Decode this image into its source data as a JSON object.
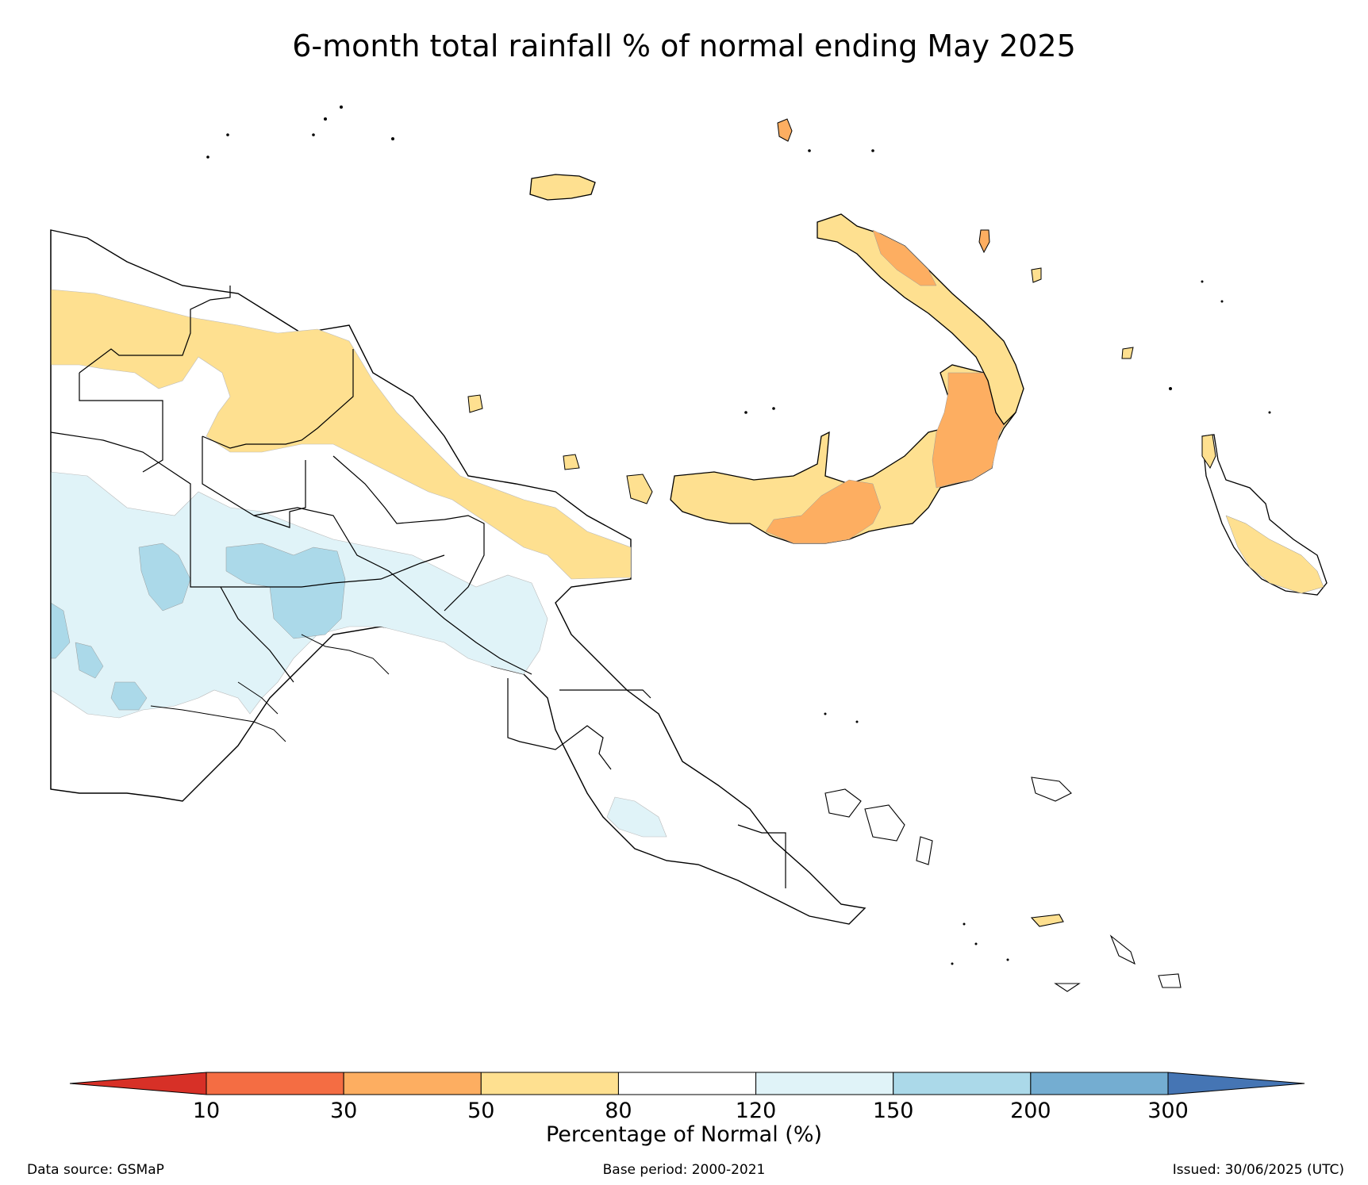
{
  "title": "6-month total rainfall % of normal ending May 2025",
  "colorbar": {
    "title": "Percentage of Normal (%)",
    "ticks": [
      "10",
      "30",
      "50",
      "80",
      "120",
      "150",
      "200",
      "300"
    ],
    "colors": {
      "under": "#d73027",
      "bins": [
        "#f46d43",
        "#fdae61",
        "#fee090",
        "#ffffff",
        "#e0f3f8",
        "#abd9e9",
        "#74add1"
      ],
      "over": "#4575b4"
    }
  },
  "footer": {
    "source": "Data source: GSMaP",
    "base_period": "Base period: 2000-2021",
    "issued": "Issued: 30/06/2025 (UTC)"
  },
  "map": {
    "region": "Papua New Guinea",
    "classes_shown": [
      "30-50",
      "50-80",
      "80-120",
      "120-150",
      "150-200"
    ]
  }
}
